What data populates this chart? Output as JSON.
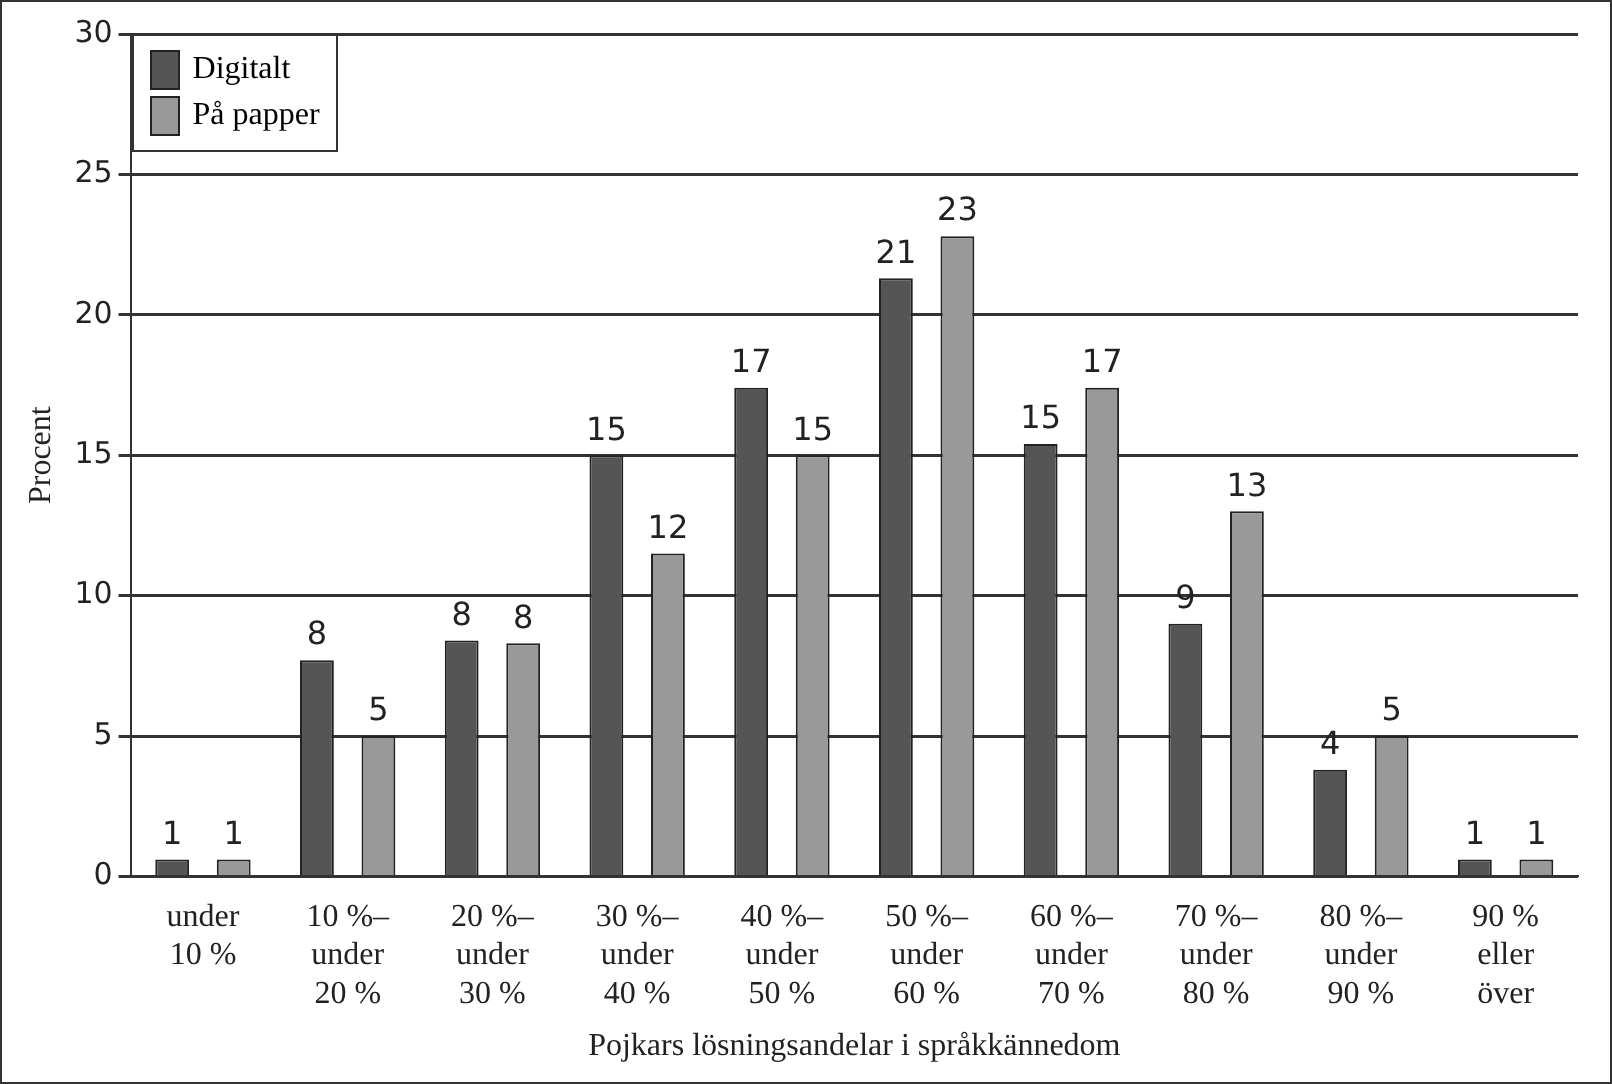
{
  "chart_data": {
    "type": "bar",
    "xlabel": "Pojkars lösningsandelar i språkkännedom",
    "ylabel": "Procent",
    "categories": [
      "under\n10 %",
      "10 %–\nunder\n20 %",
      "20 %–\nunder\n30 %",
      "30 %–\nunder\n40 %",
      "40 %–\nunder\n50 %",
      "50 %–\nunder\n60 %",
      "60 %–\nunder\n70 %",
      "70 %–\nunder\n80 %",
      "80 %–\nunder\n90 %",
      "90 %\neller\növer"
    ],
    "series": [
      {
        "name": "Digitalt",
        "color": "#555555",
        "values": [
          0.6,
          7.7,
          8.4,
          15.0,
          17.4,
          21.3,
          15.4,
          9.0,
          3.8,
          0.6
        ],
        "value_labels": [
          "1",
          "8",
          "8",
          "15",
          "17",
          "21",
          "15",
          "9",
          "4",
          "1"
        ]
      },
      {
        "name": "På papper",
        "color": "#999999",
        "values": [
          0.6,
          5.0,
          8.3,
          11.5,
          15.0,
          22.8,
          17.4,
          13.0,
          5.0,
          0.6
        ],
        "value_labels": [
          "1",
          "5",
          "8",
          "12",
          "15",
          "23",
          "17",
          "13",
          "5",
          "1"
        ]
      }
    ],
    "ylim": [
      0,
      30
    ],
    "yticks": [
      0,
      5,
      10,
      15,
      20,
      25,
      30
    ],
    "grid": "y",
    "legend": "top left"
  }
}
